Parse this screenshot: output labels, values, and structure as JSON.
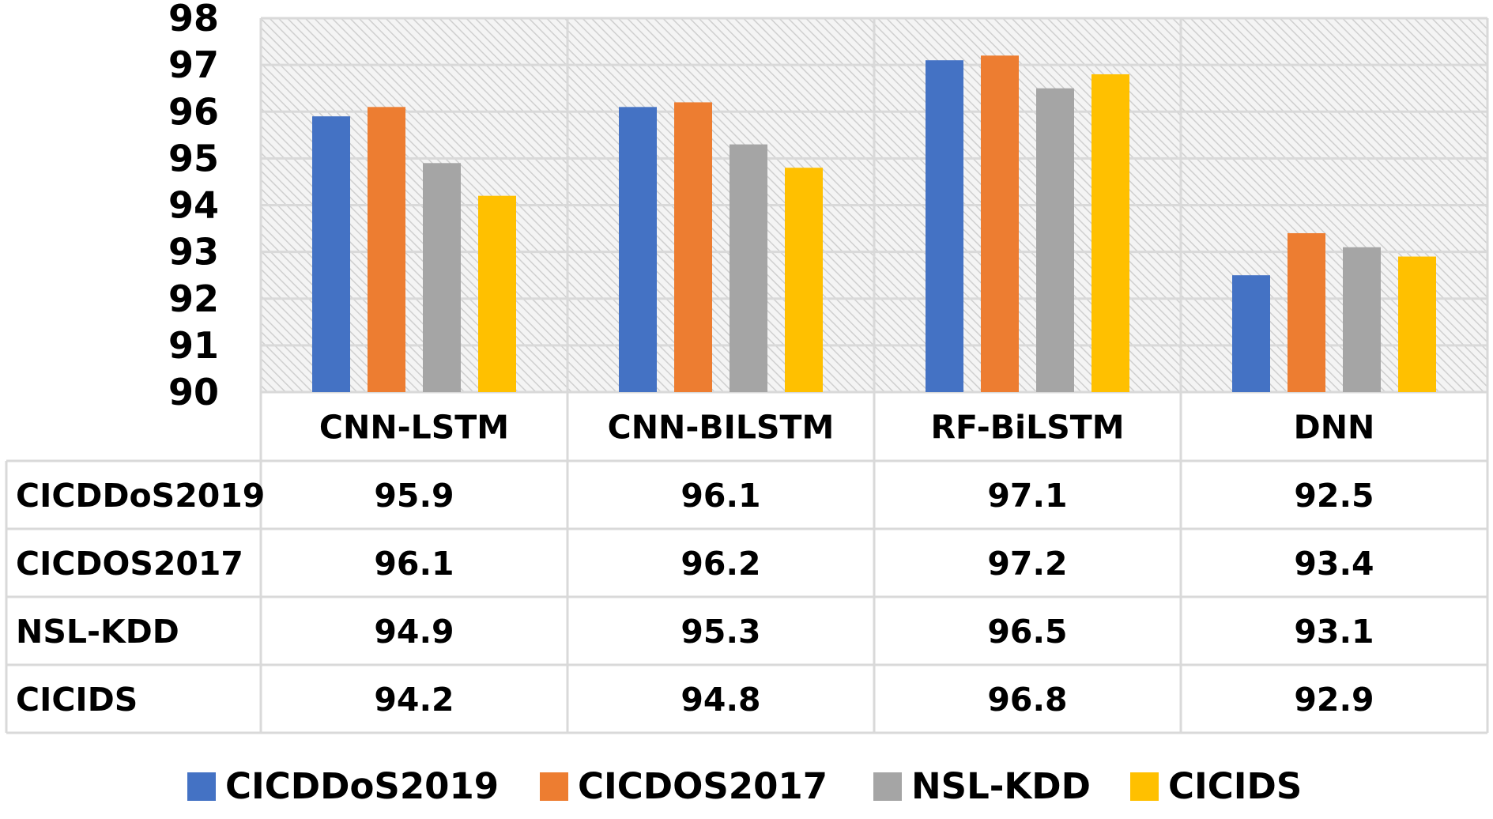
{
  "chart_data": {
    "type": "bar",
    "title": "",
    "xlabel": "",
    "ylabel": "",
    "ylim": [
      90,
      98
    ],
    "yticks": [
      90,
      91,
      92,
      93,
      94,
      95,
      96,
      97,
      98
    ],
    "categories": [
      "CNN-LSTM",
      "CNN-BILSTM",
      "RF-BiLSTM",
      "DNN"
    ],
    "series": [
      {
        "name": "CICDDoS2019",
        "color": "#4472C4",
        "values": [
          95.9,
          96.1,
          97.1,
          92.5
        ]
      },
      {
        "name": "CICDOS2017",
        "color": "#ED7D31",
        "values": [
          96.1,
          96.2,
          97.2,
          93.4
        ]
      },
      {
        "name": "NSL-KDD",
        "color": "#A5A5A5",
        "values": [
          94.9,
          95.3,
          96.5,
          93.1
        ]
      },
      {
        "name": "CICIDS",
        "color": "#FFC000",
        "values": [
          94.2,
          94.8,
          96.8,
          92.9
        ]
      }
    ],
    "table": {
      "rows": [
        {
          "label": "CICDDoS2019",
          "cells": [
            "95.9",
            "96.1",
            "97.1",
            "92.5"
          ]
        },
        {
          "label": "CICDOS2017",
          "cells": [
            "96.1",
            "96.2",
            "97.2",
            "93.4"
          ]
        },
        {
          "label": "NSL-KDD",
          "cells": [
            "94.9",
            "95.3",
            "96.5",
            "93.1"
          ]
        },
        {
          "label": "CICIDS",
          "cells": [
            "94.2",
            "94.8",
            "96.8",
            "92.9"
          ]
        }
      ]
    },
    "legend": {
      "position": "bottom",
      "entries": [
        "CICDDoS2019",
        "CICDOS2017",
        "NSL-KDD",
        "CICIDS"
      ]
    },
    "grid": true
  }
}
